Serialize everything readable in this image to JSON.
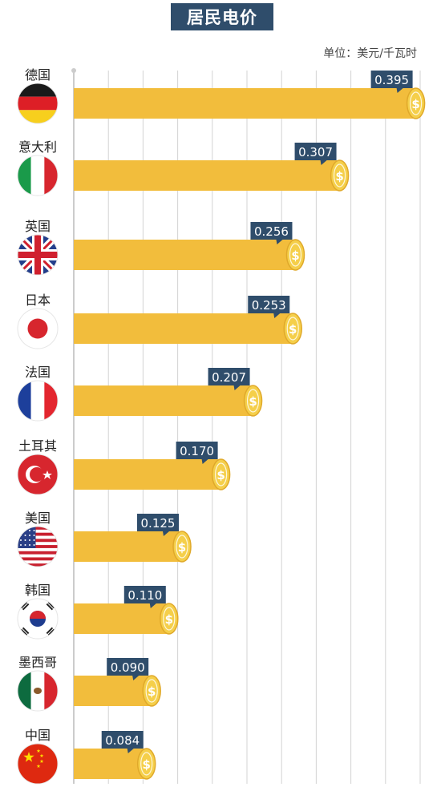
{
  "title": "居民电价",
  "unit": "单位：美元/千瓦时",
  "colors": {
    "bar": "#f2bd3c",
    "coin": "#f5cf4a",
    "label_bg": "#2f4d6b",
    "grid": "#d3d3d3"
  },
  "chart_data": {
    "type": "bar",
    "orientation": "horizontal",
    "title": "居民电价",
    "unit": "单位：美元/千瓦时",
    "categories": [
      "德国",
      "意大利",
      "英国",
      "日本",
      "法国",
      "土耳其",
      "美国",
      "韩国",
      "墨西哥",
      "中国"
    ],
    "values": [
      0.395,
      0.307,
      0.256,
      0.253,
      0.207,
      0.17,
      0.125,
      0.11,
      0.09,
      0.084
    ],
    "value_labels": [
      "0.395",
      "0.307",
      "0.256",
      "0.253",
      "0.207",
      "0.170",
      "0.125",
      "0.110",
      "0.090",
      "0.084"
    ],
    "flag_icons": [
      "germany-flag-icon",
      "italy-flag-icon",
      "uk-flag-icon",
      "japan-flag-icon",
      "france-flag-icon",
      "turkey-flag-icon",
      "usa-flag-icon",
      "korea-flag-icon",
      "mexico-flag-icon",
      "china-flag-icon"
    ],
    "xlim": [
      0,
      0.4
    ],
    "grid": true,
    "end_cap_icon": "dollar-coin-icon"
  }
}
